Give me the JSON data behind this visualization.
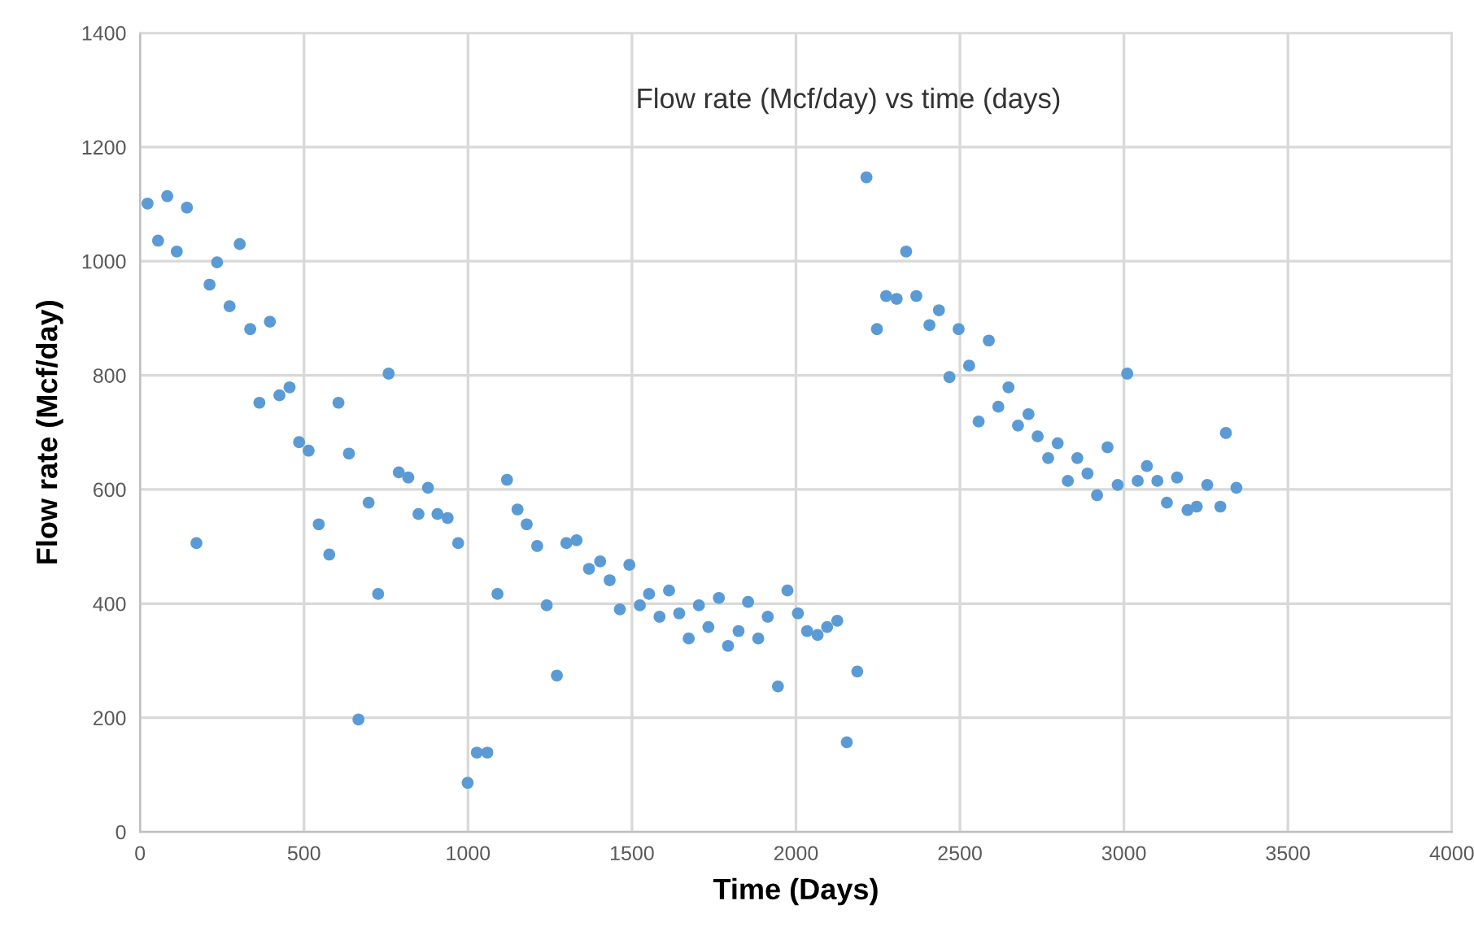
{
  "chart_data": {
    "type": "scatter",
    "title": "Flow rate (Mcf/day) vs time (days)",
    "xlabel": "Time (Days)",
    "ylabel": "Flow rate (Mcf/day)",
    "xlim": [
      0,
      4000
    ],
    "xticks": [
      0,
      500,
      1000,
      1500,
      2000,
      2500,
      3000,
      3500,
      4000
    ],
    "ylim": [
      0,
      1400
    ],
    "yticks": [
      0,
      200,
      400,
      600,
      800,
      1000,
      1200,
      1400
    ],
    "grid": true,
    "marker": "circle",
    "series": [
      {
        "color": "#5b9bd5",
        "x": [
          23,
          55,
          83,
          112,
          143,
          172,
          212,
          235,
          273,
          304,
          336,
          364,
          396,
          425,
          456,
          485,
          514,
          545,
          577,
          605,
          637,
          666,
          697,
          726,
          758,
          789,
          818,
          849,
          878,
          907,
          938,
          970,
          999,
          1027,
          1059,
          1090,
          1119,
          1151,
          1179,
          1211,
          1240,
          1271,
          1300,
          1331,
          1369,
          1403,
          1432,
          1463,
          1492,
          1524,
          1552,
          1584,
          1613,
          1644,
          1673,
          1704,
          1733,
          1765,
          1793,
          1825,
          1854,
          1885,
          1914,
          1945,
          1974,
          2006,
          2034,
          2066,
          2095,
          2126,
          2155,
          2187,
          2215,
          2247,
          2275,
          2307,
          2336,
          2367,
          2407,
          2436,
          2468,
          2496,
          2528,
          2557,
          2588,
          2617,
          2648,
          2677,
          2709,
          2737,
          2769,
          2798,
          2829,
          2858,
          2889,
          2918,
          2950,
          2981,
          3010,
          3042,
          3070,
          3102,
          3131,
          3162,
          3194,
          3222,
          3254,
          3294,
          3311,
          3343
        ],
        "values": [
          1101,
          1036,
          1114,
          1017,
          1094,
          506,
          959,
          998,
          921,
          1030,
          881,
          752,
          894,
          765,
          779,
          683,
          668,
          539,
          486,
          752,
          663,
          197,
          577,
          417,
          803,
          630,
          621,
          557,
          603,
          557,
          550,
          506,
          86,
          139,
          139,
          417,
          617,
          565,
          539,
          501,
          397,
          274,
          506,
          511,
          461,
          474,
          441,
          390,
          468,
          397,
          417,
          377,
          423,
          383,
          339,
          397,
          359,
          410,
          326,
          352,
          403,
          339,
          377,
          255,
          423,
          383,
          352,
          345,
          359,
          370,
          157,
          281,
          1147,
          881,
          939,
          934,
          1017,
          939,
          888,
          914,
          797,
          881,
          817,
          719,
          861,
          745,
          779,
          712,
          732,
          693,
          655,
          681,
          615,
          655,
          628,
          590,
          674,
          608,
          803,
          615,
          641,
          615,
          577,
          621,
          564,
          570,
          608,
          570,
          699,
          603
        ]
      }
    ]
  }
}
